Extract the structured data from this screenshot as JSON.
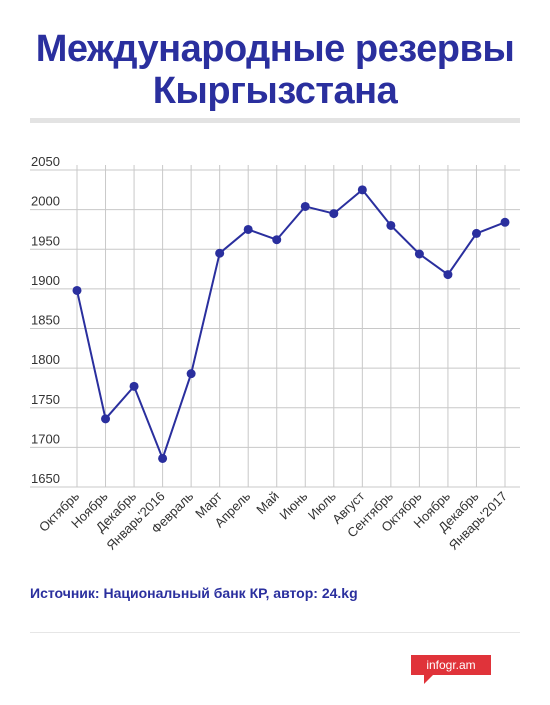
{
  "title": "Международные резервы Кыргызстана",
  "source": "Источник: Национальный банк КР, автор: 24.kg",
  "badge": "infogr.am",
  "colors": {
    "line": "#2a2f9e",
    "title": "#2a2f9e",
    "badge": "#e0333a",
    "grid": "#c8c8c8"
  },
  "chart_data": {
    "type": "line",
    "title": "Международные резервы Кыргызстана",
    "categories": [
      "Октябрь",
      "Ноябрь",
      "Декабрь",
      "Январь'2016",
      "Февраль",
      "Март",
      "Апрель",
      "Май",
      "Июнь",
      "Июль",
      "Август",
      "Сентябрь",
      "Октябрь",
      "Ноябрь",
      "Декабрь",
      "Январь'2017"
    ],
    "series": [
      {
        "values": [
          1898,
          1736,
          1777,
          1686,
          1793,
          1945,
          1975,
          1962,
          2004,
          1995,
          2025,
          1980,
          1944,
          1918,
          1970,
          1984
        ]
      }
    ],
    "ylim": [
      1650,
      2050
    ],
    "yticks": [
      1650,
      1700,
      1750,
      1800,
      1850,
      1900,
      1950,
      2000,
      2050
    ],
    "grid": true,
    "xlabel": "",
    "ylabel": ""
  }
}
